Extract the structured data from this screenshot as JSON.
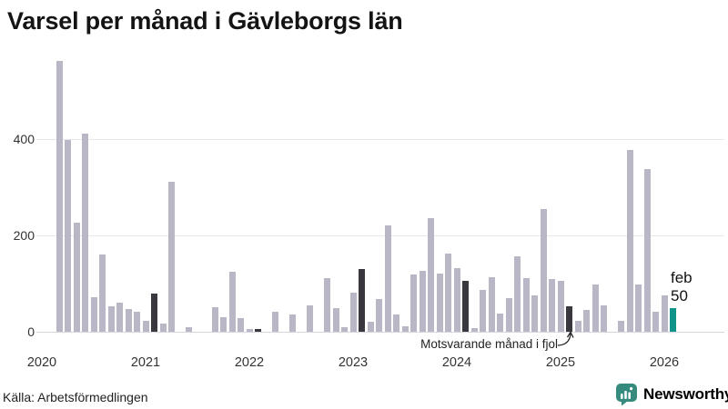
{
  "title": "Varsel per månad i Gävleborgs län",
  "source": "Källa: Arbetsförmedlingen",
  "brand": {
    "name": "Newsworthy",
    "color": "#368b7e",
    "icon": "bar-chart-speech-bubble-icon"
  },
  "annotation": {
    "text": "Motsvarande månad i fjol",
    "target_month": "2025-02"
  },
  "current_label": {
    "month_label": "feb",
    "value_label": "50"
  },
  "colors": {
    "bar": "#b9b6c5",
    "bar_dark": "#3a383e",
    "bar_current": "#0e9488",
    "grid": "#e7e6eb",
    "brand_teal": "#368b7e"
  },
  "chart_data": {
    "type": "bar",
    "title": "Varsel per månad i Gävleborgs län",
    "xlabel": "",
    "ylabel": "",
    "y_ticks": [
      0,
      200,
      400
    ],
    "y_tick_labels": [
      "0",
      "200",
      "400"
    ],
    "ylim": [
      0,
      575
    ],
    "x_tick_labels": [
      "2020",
      "2021",
      "2022",
      "2023",
      "2024",
      "2025",
      "2026"
    ],
    "grid": "horizontal",
    "legend": "none",
    "series_by_year": [
      {
        "year": 2020,
        "values": [
          0,
          0,
          563,
          399,
          226,
          411,
          72,
          160,
          53,
          60,
          47,
          41
        ]
      },
      {
        "year": 2021,
        "values": [
          22,
          79,
          17,
          311,
          0,
          9,
          0,
          0,
          51,
          30,
          124,
          28
        ]
      },
      {
        "year": 2022,
        "values": [
          6,
          6,
          0,
          42,
          0,
          36,
          0,
          54,
          0,
          112,
          49,
          9
        ]
      },
      {
        "year": 2023,
        "values": [
          81,
          130,
          20,
          68,
          221,
          35,
          11,
          118,
          126,
          235,
          120,
          162
        ]
      },
      {
        "year": 2024,
        "values": [
          132,
          105,
          8,
          87,
          113,
          37,
          70,
          156,
          111,
          75,
          254,
          109
        ]
      },
      {
        "year": 2025,
        "values": [
          105,
          52,
          23,
          45,
          98,
          54,
          0,
          22,
          378,
          99,
          337,
          41
        ]
      },
      {
        "year": 2026,
        "values": [
          75,
          50
        ]
      }
    ],
    "dark_bar_months": [
      "2021-02",
      "2022-02",
      "2023-02",
      "2024-02",
      "2025-02"
    ],
    "current_bar_month": "2026-02",
    "annotations": [
      {
        "text": "Motsvarande månad i fjol",
        "target_month": "2025-02"
      },
      {
        "text": "feb 50",
        "target_month": "2026-02"
      }
    ]
  }
}
